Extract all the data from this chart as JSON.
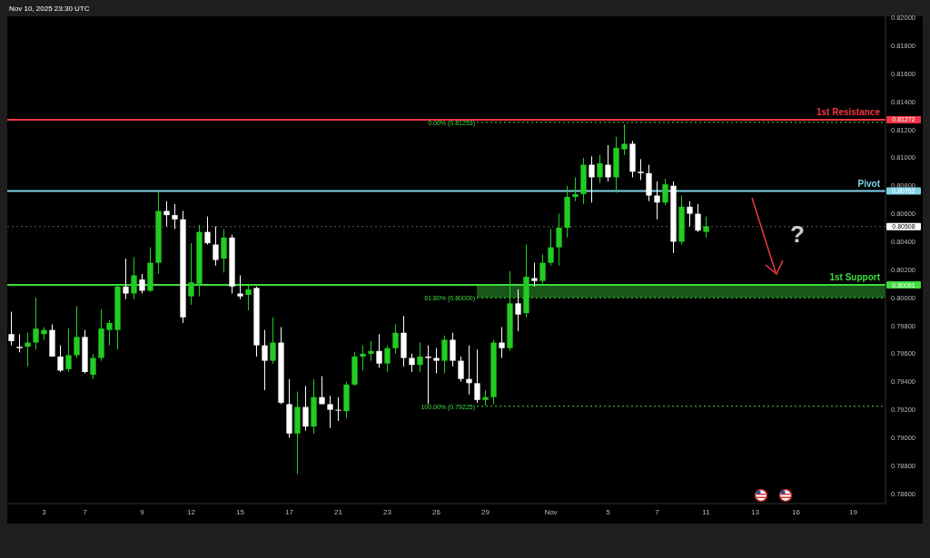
{
  "chart_data": {
    "type": "candlestick",
    "title": "Nov 10, 2025 23:30 UTC",
    "categories": [
      null,
      null,
      null,
      null,
      "3",
      null,
      null,
      null,
      null,
      "7",
      null,
      null,
      null,
      null,
      null,
      null,
      "9",
      null,
      null,
      null,
      null,
      null,
      "12",
      null,
      null,
      null,
      null,
      null,
      "15",
      null,
      null,
      null,
      null,
      null,
      "17",
      null,
      null,
      null,
      null,
      null,
      "21",
      null,
      null,
      null,
      null,
      null,
      "23",
      null,
      null,
      null,
      null,
      null,
      "26",
      null,
      null,
      null,
      null,
      null,
      "29",
      null,
      null,
      null,
      null,
      null,
      null,
      null,
      "Nov",
      null,
      null,
      null,
      null,
      null,
      null,
      "5",
      null,
      null,
      null,
      null,
      null,
      "7",
      null,
      null,
      null,
      null,
      null,
      "11",
      null,
      null,
      null,
      null,
      null,
      "13",
      null,
      null,
      null,
      null,
      "16",
      null,
      null,
      null,
      null,
      null,
      null,
      "19",
      null,
      null,
      null
    ],
    "ohlc": [
      [
        0.7974,
        0.799,
        0.7966,
        0.7969
      ],
      [
        0.7964,
        0.7974,
        0.7961,
        0.7965
      ],
      [
        0.7965,
        0.7975,
        0.7951,
        0.7968
      ],
      [
        0.7968,
        0.8,
        0.7963,
        0.7978
      ],
      [
        0.7974,
        0.7979,
        0.797,
        0.7977
      ],
      [
        0.7977,
        0.7981,
        0.7958,
        0.7958
      ],
      [
        0.7958,
        0.7966,
        0.7947,
        0.7948
      ],
      [
        0.7949,
        0.7978,
        0.7947,
        0.7959
      ],
      [
        0.7959,
        0.7994,
        0.7957,
        0.7972
      ],
      [
        0.7972,
        0.7977,
        0.7946,
        0.7947
      ],
      [
        0.7945,
        0.796,
        0.7942,
        0.7957
      ],
      [
        0.7957,
        0.7992,
        0.7955,
        0.7978
      ],
      [
        0.7977,
        0.7984,
        0.7966,
        0.7982
      ],
      [
        0.7977,
        0.801,
        0.7963,
        0.8008
      ],
      [
        0.8008,
        0.8028,
        0.7999,
        0.8003
      ],
      [
        0.8003,
        0.8029,
        0.7999,
        0.8016
      ],
      [
        0.8013,
        0.8017,
        0.8003,
        0.8005
      ],
      [
        0.8005,
        0.8036,
        0.8004,
        0.8025
      ],
      [
        0.8025,
        0.8076,
        0.8017,
        0.8062
      ],
      [
        0.8062,
        0.8069,
        0.8051,
        0.8059
      ],
      [
        0.8059,
        0.8067,
        0.8049,
        0.8056
      ],
      [
        0.8056,
        0.8062,
        0.7982,
        0.7986
      ],
      [
        0.8001,
        0.8039,
        0.7995,
        0.8011
      ],
      [
        0.801,
        0.8052,
        0.8001,
        0.8047
      ],
      [
        0.8047,
        0.8058,
        0.8038,
        0.8039
      ],
      [
        0.8038,
        0.8051,
        0.8023,
        0.8027
      ],
      [
        0.8028,
        0.8049,
        0.8018,
        0.8043
      ],
      [
        0.8043,
        0.8045,
        0.8003,
        0.8008
      ],
      [
        0.8003,
        0.8016,
        0.7999,
        0.8001
      ],
      [
        0.8002,
        0.801,
        0.7991,
        0.8006
      ],
      [
        0.8007,
        0.8008,
        0.7958,
        0.7966
      ],
      [
        0.7966,
        0.7977,
        0.7934,
        0.7955
      ],
      [
        0.7955,
        0.7986,
        0.7953,
        0.7968
      ],
      [
        0.7968,
        0.7979,
        0.7924,
        0.7925
      ],
      [
        0.7924,
        0.7942,
        0.79,
        0.7903
      ],
      [
        0.7903,
        0.7933,
        0.7874,
        0.7922
      ],
      [
        0.7922,
        0.7937,
        0.7905,
        0.7908
      ],
      [
        0.7908,
        0.7942,
        0.7903,
        0.7929
      ],
      [
        0.7929,
        0.7944,
        0.7924,
        0.7924
      ],
      [
        0.7924,
        0.793,
        0.7907,
        0.792
      ],
      [
        0.792,
        0.7929,
        0.7912,
        0.792
      ],
      [
        0.7919,
        0.794,
        0.7914,
        0.7938
      ],
      [
        0.7938,
        0.7961,
        0.7937,
        0.7958
      ],
      [
        0.7958,
        0.7966,
        0.7948,
        0.796
      ],
      [
        0.796,
        0.7969,
        0.7955,
        0.7962
      ],
      [
        0.7962,
        0.7974,
        0.795,
        0.7953
      ],
      [
        0.7953,
        0.7966,
        0.7947,
        0.7964
      ],
      [
        0.7964,
        0.7981,
        0.796,
        0.7975
      ],
      [
        0.7975,
        0.7987,
        0.7951,
        0.7957
      ],
      [
        0.7957,
        0.796,
        0.7947,
        0.7952
      ],
      [
        0.7952,
        0.7968,
        0.7947,
        0.7958
      ],
      [
        0.7958,
        0.7966,
        0.7924,
        0.7957
      ],
      [
        0.7957,
        0.7964,
        0.7946,
        0.7955
      ],
      [
        0.7955,
        0.7973,
        0.7946,
        0.797
      ],
      [
        0.797,
        0.7975,
        0.7951,
        0.7955
      ],
      [
        0.7955,
        0.7958,
        0.794,
        0.7942
      ],
      [
        0.7942,
        0.7966,
        0.7931,
        0.7939
      ],
      [
        0.7939,
        0.7963,
        0.7925,
        0.7927
      ],
      [
        0.7927,
        0.7934,
        0.7923,
        0.7929
      ],
      [
        0.7929,
        0.797,
        0.7924,
        0.7968
      ],
      [
        0.7968,
        0.7979,
        0.7957,
        0.7964
      ],
      [
        0.7964,
        0.8019,
        0.7962,
        0.7996
      ],
      [
        0.7996,
        0.8006,
        0.7976,
        0.7988
      ],
      [
        0.7989,
        0.8038,
        0.7986,
        0.8015
      ],
      [
        0.8014,
        0.8025,
        0.8008,
        0.8012
      ],
      [
        0.8012,
        0.8031,
        0.801,
        0.8025
      ],
      [
        0.8025,
        0.8049,
        0.8023,
        0.8036
      ],
      [
        0.8036,
        0.806,
        0.8023,
        0.805
      ],
      [
        0.805,
        0.808,
        0.8043,
        0.8072
      ],
      [
        0.8072,
        0.8086,
        0.8069,
        0.8074
      ],
      [
        0.8074,
        0.81,
        0.8067,
        0.8095
      ],
      [
        0.8095,
        0.8101,
        0.8068,
        0.8086
      ],
      [
        0.8086,
        0.8102,
        0.8082,
        0.8096
      ],
      [
        0.8095,
        0.8109,
        0.8083,
        0.8086
      ],
      [
        0.8086,
        0.8115,
        0.8075,
        0.8107
      ],
      [
        0.8106,
        0.8124,
        0.8102,
        0.811
      ],
      [
        0.811,
        0.8112,
        0.8086,
        0.809
      ],
      [
        0.809,
        0.8099,
        0.8084,
        0.8089
      ],
      [
        0.8089,
        0.8095,
        0.8069,
        0.8073
      ],
      [
        0.8073,
        0.8083,
        0.8056,
        0.8068
      ],
      [
        0.8068,
        0.8085,
        0.8066,
        0.8081
      ],
      [
        0.808,
        0.8083,
        0.8032,
        0.804
      ],
      [
        0.804,
        0.8073,
        0.8038,
        0.8065
      ],
      [
        0.8065,
        0.8069,
        0.8051,
        0.806
      ],
      [
        0.806,
        0.8067,
        0.8047,
        0.8048
      ],
      [
        0.8047,
        0.8058,
        0.8043,
        0.8051
      ],
      null,
      null,
      null,
      null,
      null,
      null,
      null,
      null,
      null,
      null,
      null,
      null,
      null,
      null,
      null,
      null,
      null,
      null,
      null,
      null,
      null
    ],
    "colors": [
      "#ffffff",
      "#ffffff",
      "#22cc22",
      "#22cc22",
      "#22cc22",
      "#ffffff",
      "#ffffff",
      "#22cc22",
      "#22cc22",
      "#ffffff",
      "#22cc22",
      "#22cc22",
      "#22cc22",
      "#22cc22",
      "#ffffff",
      "#22cc22",
      "#ffffff",
      "#22cc22",
      "#22cc22",
      "#ffffff",
      "#ffffff",
      "#ffffff",
      "#22cc22",
      "#22cc22",
      "#ffffff",
      "#ffffff",
      "#22cc22",
      "#ffffff",
      "#ffffff",
      "#22cc22",
      "#ffffff",
      "#ffffff",
      "#22cc22",
      "#ffffff",
      "#ffffff",
      "#22cc22",
      "#ffffff",
      "#22cc22",
      "#ffffff",
      "#ffffff",
      "#ffffff",
      "#22cc22",
      "#22cc22",
      "#22cc22",
      "#22cc22",
      "#ffffff",
      "#22cc22",
      "#22cc22",
      "#ffffff",
      "#ffffff",
      "#22cc22",
      "#ffffff",
      "#ffffff",
      "#22cc22",
      "#ffffff",
      "#ffffff",
      "#ffffff",
      "#ffffff",
      "#22cc22",
      "#22cc22",
      "#ffffff",
      "#22cc22",
      "#ffffff",
      "#22cc22",
      "#ffffff",
      "#22cc22",
      "#22cc22",
      "#22cc22",
      "#22cc22",
      "#22cc22",
      "#22cc22",
      "#ffffff",
      "#22cc22",
      "#ffffff",
      "#22cc22",
      "#22cc22",
      "#ffffff",
      "#ffffff",
      "#ffffff",
      "#ffffff",
      "#22cc22",
      "#ffffff",
      "#22cc22",
      "#ffffff",
      "#ffffff",
      "#22cc22",
      null,
      null,
      null,
      null,
      null,
      null,
      null,
      null,
      null,
      null,
      null,
      null,
      null,
      null,
      null,
      null,
      null,
      null,
      null,
      null,
      null
    ],
    "ylim": [
      0.7853,
      0.8201
    ],
    "yticks": [
      {
        "value": 0.786,
        "label": "0.78600"
      },
      {
        "value": 0.788,
        "label": "0.78800"
      },
      {
        "value": 0.79,
        "label": "0.79000"
      },
      {
        "value": 0.792,
        "label": "0.79200"
      },
      {
        "value": 0.794,
        "label": "0.79400"
      },
      {
        "value": 0.796,
        "label": "0.79600"
      },
      {
        "value": 0.798,
        "label": "0.79800"
      },
      {
        "value": 0.8,
        "label": "0.80000"
      },
      {
        "value": 0.802,
        "label": "0.80200"
      },
      {
        "value": 0.804,
        "label": "0.80400"
      },
      {
        "value": 0.806,
        "label": "0.80600"
      },
      {
        "value": 0.808,
        "label": "0.80800"
      },
      {
        "value": 0.81,
        "label": "0.81000"
      },
      {
        "value": 0.812,
        "label": "0.81200"
      },
      {
        "value": 0.814,
        "label": "0.81400"
      },
      {
        "value": 0.816,
        "label": "0.81600"
      },
      {
        "value": 0.818,
        "label": "0.81800"
      },
      {
        "value": 0.82,
        "label": "0.82000"
      },
      {
        "value": 0.81272,
        "label": "0.81272"
      },
      {
        "value": 0.80762,
        "label": "0.80762"
      },
      {
        "value": 0.80508,
        "label": "0.80508"
      },
      {
        "value": 0.80091,
        "label": "0.80091"
      }
    ],
    "ref_lines": [
      {
        "axis": "y",
        "value": 0.81272,
        "label": "1st Resistance",
        "color": "#f23645",
        "line_style": "solid"
      },
      {
        "axis": "y",
        "value": 0.80762,
        "label": "Pivot",
        "color": "#7fd3e6",
        "line_style": "solid"
      },
      {
        "axis": "y",
        "value": 0.80091,
        "label": "1st Support",
        "color": "#3ddc3d",
        "line_style": "solid"
      },
      {
        "axis": "y",
        "value": 0.80508,
        "label": null,
        "color": "#ffffff",
        "line_style": "dotted"
      },
      {
        "axis": "y",
        "value": 0.81253,
        "label": "0.00% (0.81253)",
        "color": "#3ddc3d",
        "line_style": "dotted"
      },
      {
        "axis": "y",
        "value": 0.8,
        "label": "61.80% (0.80000)",
        "color": "#3ddc3d",
        "line_style": "dotted"
      },
      {
        "axis": "y",
        "value": 0.79225,
        "label": "100.00% (0.79225)",
        "color": "#3ddc3d",
        "line_style": "dotted"
      }
    ],
    "bands": [
      {
        "axis": "y",
        "from": 0.8,
        "to": 0.80091,
        "color": "#1f6b1f"
      }
    ],
    "annotations": [
      "?"
    ]
  }
}
